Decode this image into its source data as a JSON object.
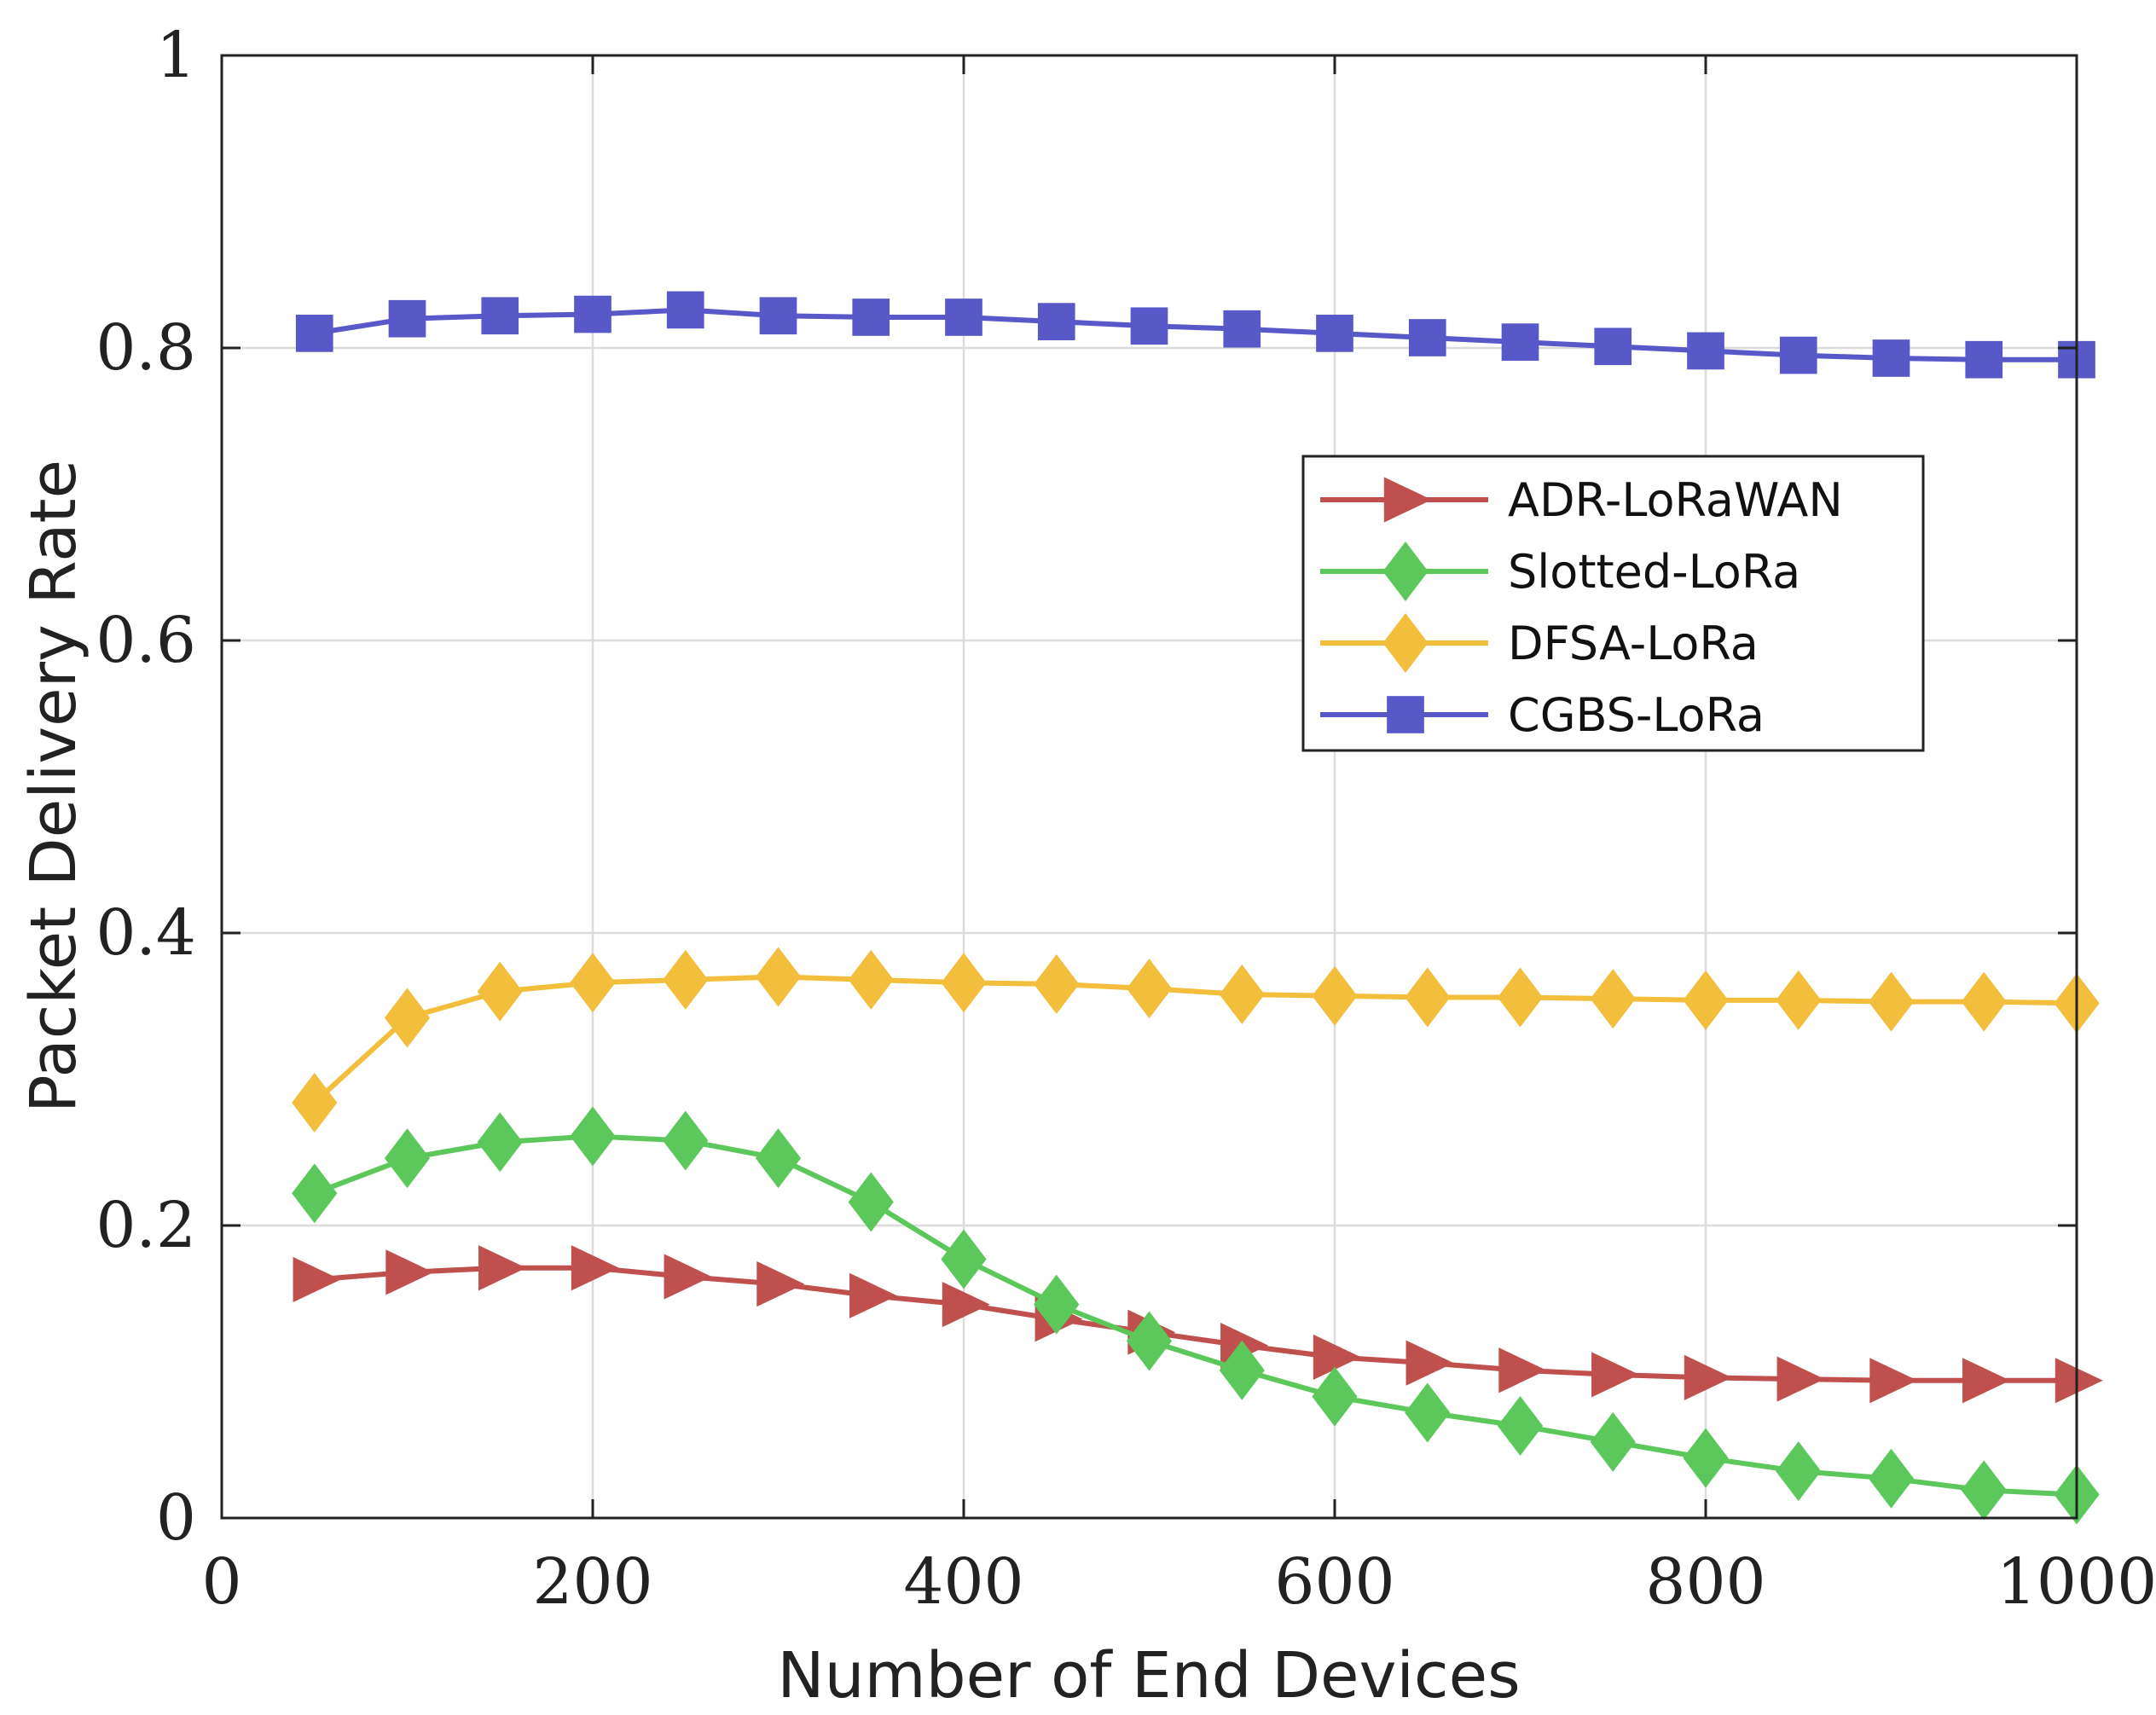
{
  "chart_data": {
    "type": "line",
    "title": "",
    "xlabel": "Number of End Devices",
    "ylabel": "Packet Delivery Rate",
    "xlim": [
      0,
      1000
    ],
    "ylim": [
      0,
      1
    ],
    "xticks": [
      0,
      200,
      400,
      600,
      800,
      1000
    ],
    "xtick_labels": [
      "0",
      "200",
      "400",
      "600",
      "800",
      "1000"
    ],
    "yticks": [
      0,
      0.2,
      0.4,
      0.6,
      0.8,
      1
    ],
    "ytick_labels": [
      "0",
      "0.2",
      "0.4",
      "0.6",
      "0.8",
      "1"
    ],
    "grid": true,
    "legend_position": "right",
    "x": [
      50,
      100,
      150,
      200,
      250,
      300,
      350,
      400,
      450,
      500,
      550,
      600,
      650,
      700,
      750,
      800,
      850,
      900,
      950,
      1000
    ],
    "series": [
      {
        "name": "ADR-LoRaWAN",
        "color": "#c0504d",
        "marker": "triangle-right",
        "values": [
          0.163,
          0.168,
          0.171,
          0.171,
          0.165,
          0.16,
          0.152,
          0.146,
          0.136,
          0.127,
          0.118,
          0.11,
          0.106,
          0.101,
          0.098,
          0.096,
          0.095,
          0.094,
          0.094,
          0.094
        ]
      },
      {
        "name": "Slotted-LoRa",
        "color": "#5cc85c",
        "marker": "diamond",
        "values": [
          0.222,
          0.246,
          0.257,
          0.261,
          0.258,
          0.246,
          0.216,
          0.177,
          0.146,
          0.121,
          0.101,
          0.083,
          0.072,
          0.063,
          0.052,
          0.041,
          0.032,
          0.027,
          0.019,
          0.016
        ]
      },
      {
        "name": "DFSA-LoRa",
        "color": "#f2be3c",
        "marker": "diamond",
        "values": [
          0.284,
          0.342,
          0.36,
          0.366,
          0.368,
          0.37,
          0.368,
          0.366,
          0.365,
          0.362,
          0.358,
          0.357,
          0.356,
          0.356,
          0.355,
          0.354,
          0.354,
          0.353,
          0.353,
          0.352
        ]
      },
      {
        "name": "CGBS-LoRa",
        "color": "#5858c8",
        "marker": "square",
        "values": [
          0.81,
          0.82,
          0.822,
          0.823,
          0.826,
          0.822,
          0.821,
          0.821,
          0.818,
          0.815,
          0.813,
          0.81,
          0.807,
          0.804,
          0.801,
          0.798,
          0.795,
          0.793,
          0.792,
          0.792
        ]
      }
    ]
  }
}
